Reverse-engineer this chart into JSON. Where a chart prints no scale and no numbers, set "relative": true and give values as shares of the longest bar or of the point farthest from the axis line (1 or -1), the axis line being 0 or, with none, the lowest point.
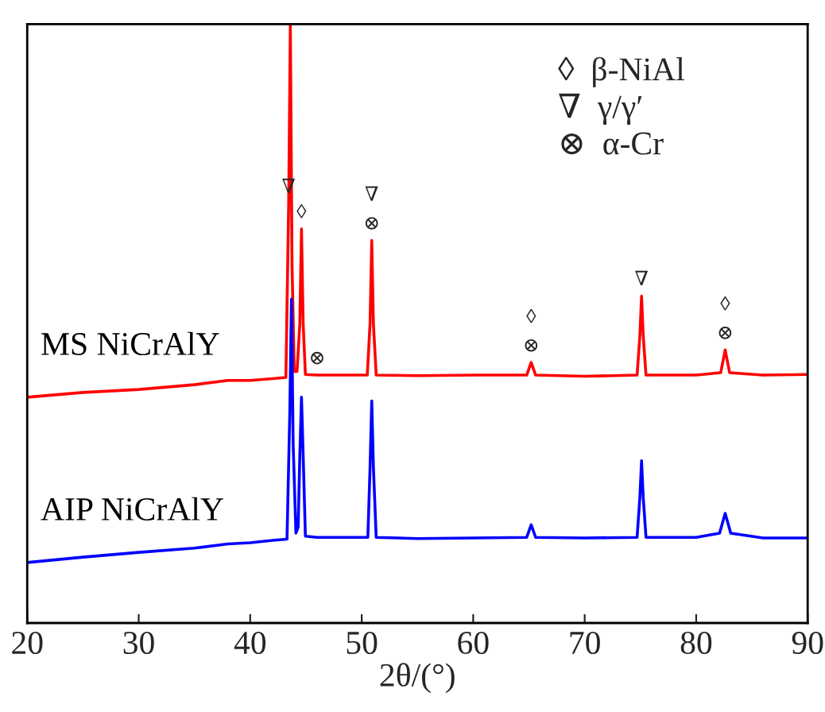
{
  "chart_data": {
    "type": "line",
    "relative": true,
    "xlabel": "2θ/(°)",
    "xlim": [
      20,
      90
    ],
    "xticks": [
      20,
      30,
      40,
      50,
      60,
      70,
      80,
      90
    ],
    "grid": false,
    "marker": "none",
    "line_style": "solid",
    "series": [
      {
        "name": "MS NiCrAlY",
        "color": "#ff0000",
        "x": [
          20,
          25,
          30,
          35,
          38,
          40,
          42,
          43.2,
          43.45,
          43.6,
          43.75,
          43.95,
          44.2,
          44.45,
          44.6,
          44.75,
          44.95,
          46,
          48,
          50.5,
          50.75,
          50.9,
          51.05,
          51.3,
          55,
          60,
          64.8,
          65.2,
          65.6,
          70,
          74.7,
          74.95,
          75.1,
          75.25,
          75.5,
          80,
          82.2,
          82.6,
          83.0,
          86,
          90
        ],
        "values": [
          0.377,
          0.385,
          0.39,
          0.398,
          0.405,
          0.405,
          0.408,
          0.41,
          0.7,
          1.0,
          0.6,
          0.42,
          0.42,
          0.5,
          0.658,
          0.5,
          0.415,
          0.414,
          0.414,
          0.414,
          0.5,
          0.639,
          0.5,
          0.414,
          0.413,
          0.414,
          0.414,
          0.435,
          0.414,
          0.412,
          0.414,
          0.48,
          0.546,
          0.48,
          0.414,
          0.414,
          0.418,
          0.456,
          0.418,
          0.414,
          0.415
        ]
      },
      {
        "name": "AIP NiCrAlY",
        "color": "#0000ff",
        "x": [
          20,
          25,
          30,
          35,
          38,
          40,
          42,
          43.3,
          43.55,
          43.7,
          43.85,
          44.1,
          44.3,
          44.45,
          44.6,
          44.75,
          44.95,
          46,
          48,
          50.55,
          50.75,
          50.9,
          51.05,
          51.3,
          55,
          60,
          64.8,
          65.2,
          65.6,
          70,
          74.7,
          74.95,
          75.1,
          75.25,
          75.5,
          80,
          82.1,
          82.6,
          83.1,
          86,
          90
        ],
        "values": [
          0.101,
          0.11,
          0.118,
          0.125,
          0.132,
          0.134,
          0.138,
          0.14,
          0.35,
          0.541,
          0.3,
          0.15,
          0.16,
          0.28,
          0.377,
          0.28,
          0.145,
          0.143,
          0.143,
          0.143,
          0.26,
          0.371,
          0.26,
          0.143,
          0.141,
          0.142,
          0.143,
          0.164,
          0.143,
          0.142,
          0.143,
          0.21,
          0.271,
          0.21,
          0.143,
          0.143,
          0.15,
          0.183,
          0.15,
          0.142,
          0.142
        ]
      }
    ],
    "annotations": [
      "◊  β-NiAl",
      "∇  γ/γ′",
      "⊗  α-Cr",
      {
        "text": "∇",
        "x": 43.45,
        "y": 0.7
      },
      {
        "text": "◊",
        "x": 44.6,
        "y": 0.658
      },
      {
        "text": "⊗",
        "x": 46,
        "y": 0.414
      },
      {
        "text": "∇",
        "x": 50.9,
        "y": 0.639
      },
      {
        "text": "⊗",
        "x": 50.9,
        "y": 0.639
      },
      {
        "text": "◊",
        "x": 65.2,
        "y": 0.435
      },
      {
        "text": "⊗",
        "x": 65.2,
        "y": 0.435
      },
      {
        "text": "∇",
        "x": 75.1,
        "y": 0.546
      },
      {
        "text": "◊",
        "x": 82.6,
        "y": 0.456
      },
      {
        "text": "⊗",
        "x": 82.6,
        "y": 0.456
      }
    ]
  }
}
